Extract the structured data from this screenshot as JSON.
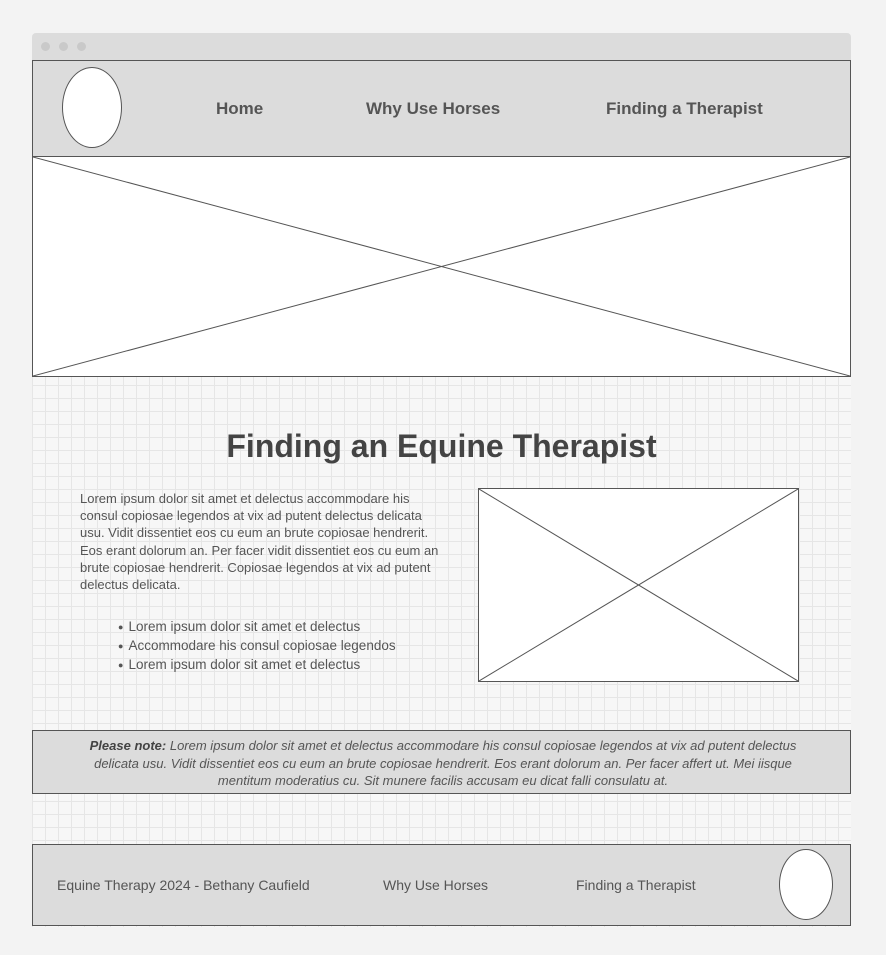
{
  "nav": {
    "home": "Home",
    "why": "Why Use Horses",
    "finding": "Finding a Therapist"
  },
  "main": {
    "title": "Finding an Equine Therapist",
    "paragraph": "Lorem ipsum dolor sit amet et delectus accommodare his consul copiosae legendos at vix ad putent delectus delicata usu. Vidit dissentiet eos cu eum an brute copiosae hendrerit. Eos erant dolorum an. Per facer vidit dissentiet eos cu eum an brute copiosae hendrerit. Copiosae legendos at vix ad putent delectus delicata.",
    "bullets": [
      "Lorem ipsum dolor sit amet et delectus",
      "Accommodare his consul copiosae legendos",
      "Lorem ipsum dolor sit amet et delectus"
    ]
  },
  "note": {
    "label": "Please note:",
    "text": " Lorem ipsum dolor sit amet et delectus accommodare his consul copiosae legendos at vix ad putent delectus delicata usu. Vidit dissentiet eos cu eum an brute copiosae hendrerit. Eos erant dolorum an. Per facer affert ut. Mei iisque mentitum moderatius cu. Sit munere facilis accusam eu dicat falli consulatu at."
  },
  "footer": {
    "copyright": "Equine Therapy 2024 - Bethany Caufield",
    "why": "Why Use Horses",
    "finding": "Finding a Therapist"
  }
}
